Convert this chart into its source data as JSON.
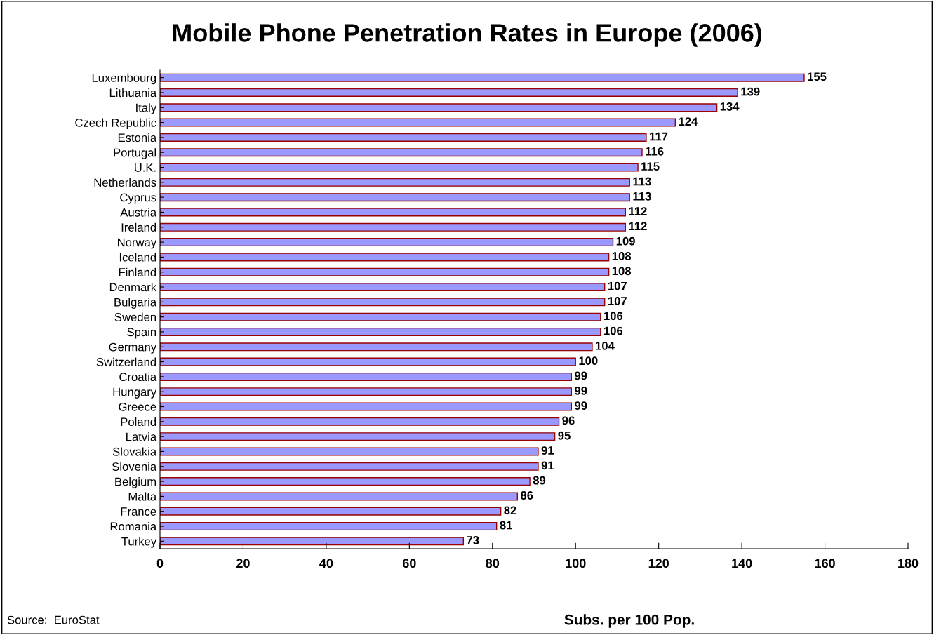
{
  "chart_data": {
    "type": "bar",
    "orientation": "horizontal",
    "title": "Mobile Phone Penetration Rates in Europe (2006)",
    "xlabel": "Subs. per 100 Pop.",
    "annotations": [
      "Source:  EuroStat"
    ],
    "categories": [
      "Luxembourg",
      "Lithuania",
      "Italy",
      "Czech Republic",
      "Estonia",
      "Portugal",
      "U.K.",
      "Netherlands",
      "Cyprus",
      "Austria",
      "Ireland",
      "Norway",
      "Iceland",
      "Finland",
      "Denmark",
      "Bulgaria",
      "Sweden",
      "Spain",
      "Germany",
      "Switzerland",
      "Croatia",
      "Hungary",
      "Greece",
      "Poland",
      "Latvia",
      "Slovakia",
      "Slovenia",
      "Belgium",
      "Malta",
      "France",
      "Romania",
      "Turkey"
    ],
    "values": [
      155,
      139,
      134,
      124,
      117,
      116,
      115,
      113,
      113,
      112,
      112,
      109,
      108,
      108,
      107,
      107,
      106,
      106,
      104,
      100,
      99,
      99,
      99,
      96,
      95,
      91,
      91,
      89,
      86,
      82,
      81,
      73
    ],
    "color": "#9999ff",
    "xlim": [
      0,
      180
    ],
    "xticks": [
      0,
      20,
      40,
      60,
      80,
      100,
      120,
      140,
      160,
      180
    ],
    "grid": false,
    "data_labels": true
  }
}
